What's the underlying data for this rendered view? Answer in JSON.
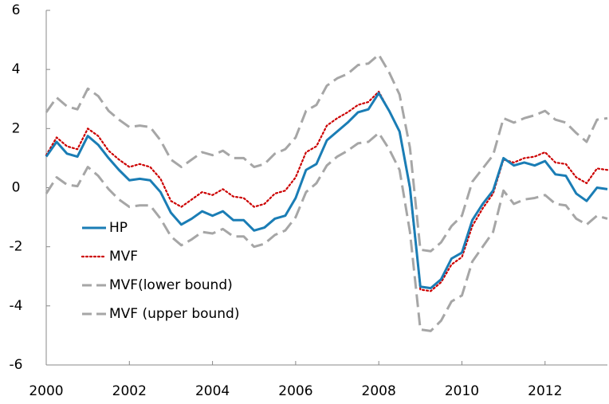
{
  "chart_data": {
    "type": "line",
    "x": [
      2000,
      2000.25,
      2000.5,
      2000.75,
      2001,
      2001.25,
      2001.5,
      2001.75,
      2002,
      2002.25,
      2002.5,
      2002.75,
      2003,
      2003.25,
      2003.5,
      2003.75,
      2004,
      2004.25,
      2004.5,
      2004.75,
      2005,
      2005.25,
      2005.5,
      2005.75,
      2006,
      2006.25,
      2006.5,
      2006.75,
      2007,
      2007.25,
      2007.5,
      2007.75,
      2008,
      2008.25,
      2008.5,
      2008.75,
      2009,
      2009.25,
      2009.5,
      2009.75,
      2010,
      2010.25,
      2010.5,
      2010.75,
      2011,
      2011.25,
      2011.5,
      2011.75,
      2012,
      2012.25,
      2012.5,
      2012.75,
      2013,
      2013.25,
      2013.5
    ],
    "xlim": [
      2000,
      2013.5
    ],
    "xticks": [
      2000,
      2002,
      2004,
      2006,
      2008,
      2010,
      2012
    ],
    "ylim": [
      -6,
      6
    ],
    "yticks": [
      -6,
      -4,
      -2,
      0,
      2,
      4,
      6
    ],
    "series": [
      {
        "name": "HP",
        "color": "#1a7db5",
        "style": "solid",
        "values": [
          1.05,
          1.55,
          1.15,
          1.05,
          1.75,
          1.45,
          1.0,
          0.6,
          0.25,
          0.3,
          0.25,
          -0.15,
          -0.85,
          -1.25,
          -1.05,
          -0.8,
          -0.95,
          -0.8,
          -1.1,
          -1.1,
          -1.45,
          -1.35,
          -1.05,
          -0.95,
          -0.35,
          0.6,
          0.8,
          1.6,
          1.9,
          2.2,
          2.55,
          2.65,
          3.2,
          2.6,
          1.9,
          0.0,
          -3.35,
          -3.4,
          -3.1,
          -2.4,
          -2.2,
          -1.1,
          -0.55,
          -0.1,
          1.0,
          0.75,
          0.85,
          0.75,
          0.9,
          0.45,
          0.4,
          -0.2,
          -0.45,
          0.0,
          -0.05
        ]
      },
      {
        "name": "MVF",
        "color": "#cc0000",
        "style": "dotted",
        "values": [
          1.1,
          1.7,
          1.4,
          1.3,
          2.0,
          1.75,
          1.25,
          0.95,
          0.7,
          0.8,
          0.7,
          0.3,
          -0.45,
          -0.65,
          -0.4,
          -0.15,
          -0.25,
          -0.05,
          -0.3,
          -0.35,
          -0.65,
          -0.55,
          -0.2,
          -0.1,
          0.35,
          1.2,
          1.4,
          2.1,
          2.35,
          2.55,
          2.8,
          2.9,
          3.25,
          2.6,
          1.9,
          -0.05,
          -3.45,
          -3.5,
          -3.2,
          -2.6,
          -2.35,
          -1.3,
          -0.7,
          -0.2,
          0.95,
          0.85,
          1.0,
          1.05,
          1.2,
          0.85,
          0.8,
          0.35,
          0.15,
          0.65,
          0.6
        ]
      },
      {
        "name": "MVF(lower bound)",
        "color": "#a6a6a6",
        "style": "dashed",
        "values": [
          -0.2,
          0.35,
          0.1,
          0.05,
          0.7,
          0.4,
          -0.05,
          -0.4,
          -0.65,
          -0.6,
          -0.6,
          -1.05,
          -1.65,
          -1.95,
          -1.75,
          -1.5,
          -1.55,
          -1.4,
          -1.65,
          -1.65,
          -2.0,
          -1.9,
          -1.6,
          -1.45,
          -1.0,
          -0.15,
          0.15,
          0.75,
          1.05,
          1.25,
          1.5,
          1.55,
          1.85,
          1.3,
          0.6,
          -1.5,
          -4.8,
          -4.85,
          -4.5,
          -3.85,
          -3.65,
          -2.5,
          -2.0,
          -1.5,
          -0.1,
          -0.55,
          -0.4,
          -0.35,
          -0.25,
          -0.55,
          -0.6,
          -1.05,
          -1.25,
          -0.95,
          -1.05
        ]
      },
      {
        "name": "MVF (upper bound)",
        "color": "#a6a6a6",
        "style": "dashed",
        "values": [
          2.55,
          3.05,
          2.75,
          2.65,
          3.35,
          3.1,
          2.6,
          2.3,
          2.05,
          2.1,
          2.05,
          1.6,
          0.95,
          0.7,
          0.95,
          1.2,
          1.1,
          1.25,
          1.0,
          1.0,
          0.7,
          0.8,
          1.15,
          1.3,
          1.7,
          2.6,
          2.8,
          3.45,
          3.7,
          3.85,
          4.15,
          4.2,
          4.5,
          3.9,
          3.15,
          1.35,
          -2.1,
          -2.15,
          -1.85,
          -1.3,
          -0.95,
          0.2,
          0.65,
          1.1,
          2.35,
          2.2,
          2.35,
          2.45,
          2.6,
          2.3,
          2.2,
          1.85,
          1.55,
          2.3,
          2.35
        ]
      }
    ]
  }
}
